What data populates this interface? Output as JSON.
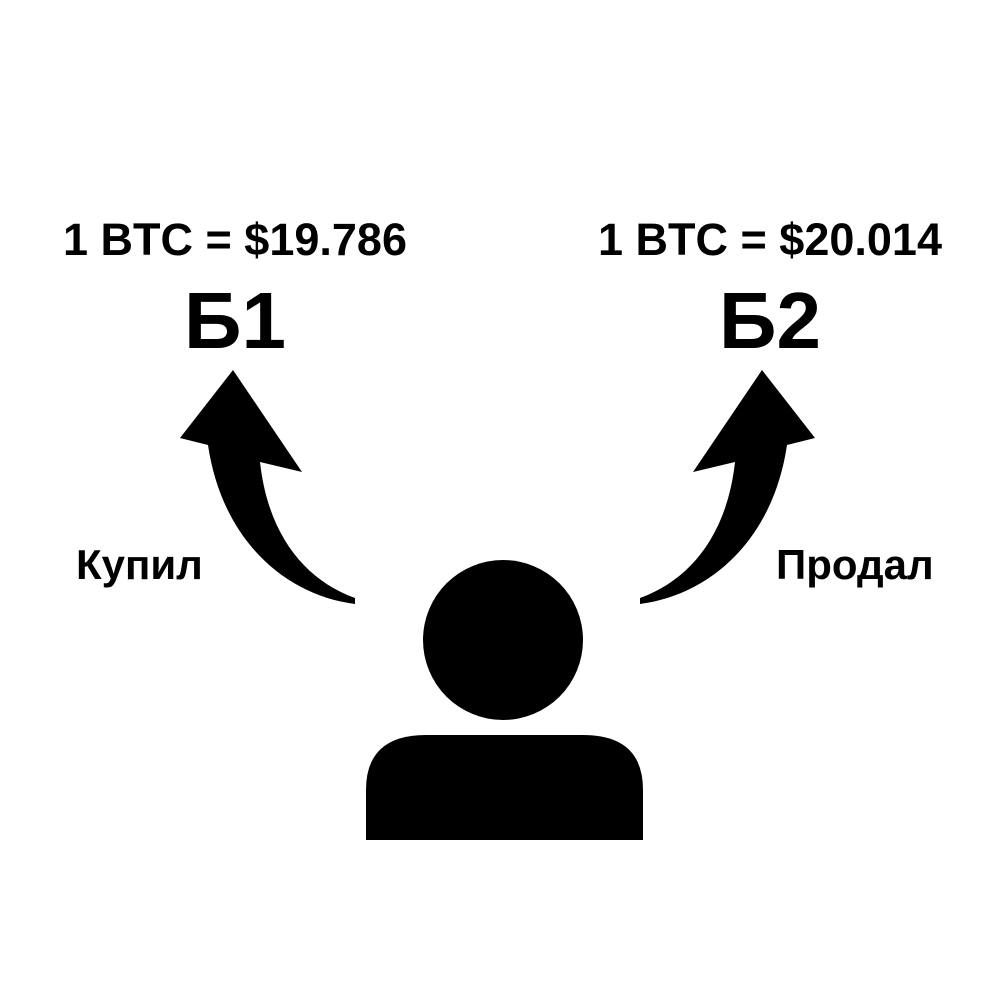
{
  "left": {
    "price": "1 BTC = $19.786",
    "exchange": "Б1",
    "action": "Купил"
  },
  "right": {
    "price": "1 BTC = $20.014",
    "exchange": "Б2",
    "action": "Продал"
  },
  "icons": {
    "person": "person-icon",
    "left_arrow": "curved-arrow-up-left-icon",
    "right_arrow": "curved-arrow-up-right-icon"
  },
  "colors": {
    "foreground": "#000000",
    "background": "#ffffff"
  }
}
